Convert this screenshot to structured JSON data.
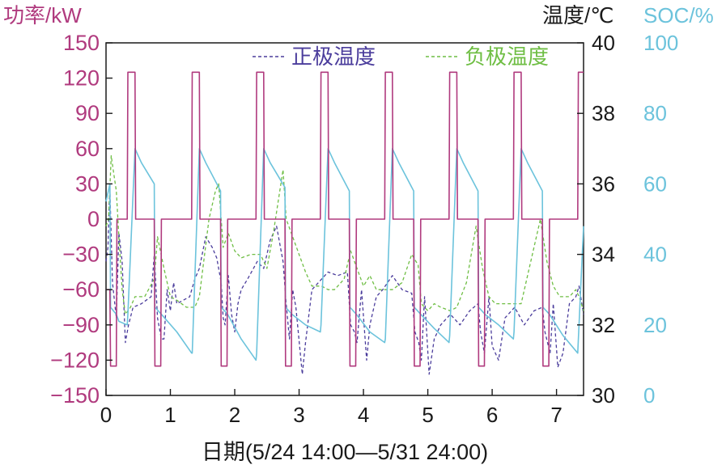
{
  "chart_data": {
    "type": "line",
    "xlabel": "日期(5/24 14:00—5/31 24:00)",
    "xlim": [
      0,
      7.42
    ],
    "x_ticks": [
      "0",
      "1",
      "2",
      "3",
      "4",
      "5",
      "6",
      "7"
    ],
    "axes": {
      "power": {
        "label": "功率/kW",
        "lim": [
          -150,
          150
        ],
        "ticks": [
          "150",
          "120",
          "90",
          "60",
          "30",
          "0",
          "−30",
          "−60",
          "−90",
          "−120",
          "−150"
        ],
        "color": "#b03a7e"
      },
      "temperature": {
        "label": "温度/℃",
        "lim": [
          30,
          40
        ],
        "ticks": [
          "40",
          "38",
          "36",
          "34",
          "32",
          "30"
        ],
        "color": "#1a1a1a"
      },
      "soc": {
        "label": "SOC/%",
        "lim": [
          0,
          100
        ],
        "ticks": [
          "100",
          "80",
          "60",
          "40",
          "20",
          "0"
        ],
        "color": "#6cc3dc"
      }
    },
    "legend": {
      "position": "top",
      "entries": [
        {
          "label": "正极温度",
          "color": "#4b3d9c",
          "style": "dashed"
        },
        {
          "label": "负极温度",
          "color": "#6fbe44",
          "style": "dashed"
        }
      ]
    },
    "series": [
      {
        "name": "功率",
        "axis": "power",
        "color": "#b03a7e",
        "style": "solid",
        "step": true,
        "points": [
          [
            0,
            -60
          ],
          [
            0.06,
            -60
          ],
          [
            0.07,
            -125
          ],
          [
            0.16,
            -125
          ],
          [
            0.17,
            0
          ],
          [
            0.33,
            0
          ],
          [
            0.34,
            125
          ],
          [
            0.45,
            125
          ],
          [
            0.46,
            0
          ],
          [
            0.75,
            0
          ],
          [
            0.76,
            -125
          ],
          [
            0.85,
            -125
          ],
          [
            0.86,
            0
          ],
          [
            1.33,
            0
          ],
          [
            1.34,
            125
          ],
          [
            1.45,
            125
          ],
          [
            1.46,
            0
          ],
          [
            1.78,
            0
          ],
          [
            1.79,
            -125
          ],
          [
            1.88,
            -125
          ],
          [
            1.89,
            0
          ],
          [
            2.33,
            0
          ],
          [
            2.34,
            125
          ],
          [
            2.45,
            125
          ],
          [
            2.46,
            0
          ],
          [
            2.78,
            0
          ],
          [
            2.79,
            -125
          ],
          [
            2.88,
            -125
          ],
          [
            2.89,
            0
          ],
          [
            3.33,
            0
          ],
          [
            3.34,
            125
          ],
          [
            3.45,
            125
          ],
          [
            3.46,
            0
          ],
          [
            3.78,
            0
          ],
          [
            3.79,
            -125
          ],
          [
            3.88,
            -125
          ],
          [
            3.89,
            0
          ],
          [
            4.33,
            0
          ],
          [
            4.34,
            125
          ],
          [
            4.45,
            125
          ],
          [
            4.46,
            0
          ],
          [
            4.78,
            0
          ],
          [
            4.79,
            -125
          ],
          [
            4.88,
            -125
          ],
          [
            4.89,
            0
          ],
          [
            5.33,
            0
          ],
          [
            5.34,
            125
          ],
          [
            5.45,
            125
          ],
          [
            5.46,
            0
          ],
          [
            5.78,
            0
          ],
          [
            5.79,
            -125
          ],
          [
            5.88,
            -125
          ],
          [
            5.89,
            0
          ],
          [
            6.33,
            0
          ],
          [
            6.34,
            125
          ],
          [
            6.45,
            125
          ],
          [
            6.46,
            0
          ],
          [
            6.78,
            0
          ],
          [
            6.79,
            -125
          ],
          [
            6.88,
            -125
          ],
          [
            6.89,
            0
          ],
          [
            7.33,
            0
          ],
          [
            7.34,
            125
          ],
          [
            7.42,
            125
          ]
        ]
      },
      {
        "name": "SOC",
        "axis": "soc",
        "color": "#6cc3dc",
        "style": "solid",
        "points": [
          [
            0,
            55
          ],
          [
            0.06,
            60
          ],
          [
            0.07,
            25
          ],
          [
            0.16,
            23
          ],
          [
            0.2,
            21
          ],
          [
            0.33,
            20
          ],
          [
            0.34,
            23
          ],
          [
            0.45,
            70
          ],
          [
            0.55,
            66
          ],
          [
            0.75,
            60
          ],
          [
            0.76,
            25
          ],
          [
            0.86,
            23
          ],
          [
            1.1,
            18
          ],
          [
            1.33,
            12
          ],
          [
            1.34,
            12
          ],
          [
            1.45,
            70
          ],
          [
            1.55,
            66
          ],
          [
            1.78,
            58
          ],
          [
            1.79,
            25
          ],
          [
            1.89,
            23
          ],
          [
            2.1,
            16
          ],
          [
            2.33,
            10
          ],
          [
            2.34,
            12
          ],
          [
            2.45,
            70
          ],
          [
            2.55,
            66
          ],
          [
            2.78,
            59
          ],
          [
            2.79,
            25
          ],
          [
            2.89,
            23
          ],
          [
            3.1,
            20
          ],
          [
            3.33,
            18
          ],
          [
            3.34,
            20
          ],
          [
            3.45,
            70
          ],
          [
            3.55,
            66
          ],
          [
            3.78,
            58
          ],
          [
            3.79,
            25
          ],
          [
            3.89,
            23
          ],
          [
            4.1,
            18
          ],
          [
            4.33,
            15
          ],
          [
            4.34,
            16
          ],
          [
            4.45,
            70
          ],
          [
            4.55,
            66
          ],
          [
            4.78,
            58
          ],
          [
            4.79,
            25
          ],
          [
            4.89,
            23
          ],
          [
            5.1,
            19
          ],
          [
            5.33,
            15
          ],
          [
            5.34,
            17
          ],
          [
            5.45,
            70
          ],
          [
            5.55,
            66
          ],
          [
            5.78,
            58
          ],
          [
            5.79,
            25
          ],
          [
            5.89,
            23
          ],
          [
            6.1,
            20
          ],
          [
            6.33,
            16
          ],
          [
            6.34,
            18
          ],
          [
            6.45,
            70
          ],
          [
            6.55,
            66
          ],
          [
            6.78,
            58
          ],
          [
            6.79,
            25
          ],
          [
            6.89,
            23
          ],
          [
            7.1,
            17
          ],
          [
            7.33,
            12
          ],
          [
            7.34,
            16
          ],
          [
            7.42,
            48
          ]
        ]
      },
      {
        "name": "正极温度",
        "axis": "temperature",
        "color": "#4b3d9c",
        "style": "dashed",
        "points": [
          [
            0,
            33.8
          ],
          [
            0.03,
            34.2
          ],
          [
            0.05,
            35.5
          ],
          [
            0.06,
            35.8
          ],
          [
            0.1,
            33.2
          ],
          [
            0.16,
            32.2
          ],
          [
            0.2,
            34.6
          ],
          [
            0.25,
            33.8
          ],
          [
            0.3,
            31.5
          ],
          [
            0.35,
            32
          ],
          [
            0.42,
            32.5
          ],
          [
            0.55,
            32.6
          ],
          [
            0.7,
            32.8
          ],
          [
            0.75,
            34
          ],
          [
            0.8,
            32.2
          ],
          [
            0.86,
            31.6
          ],
          [
            0.9,
            31.6
          ],
          [
            0.95,
            33
          ],
          [
            1,
            32.4
          ],
          [
            1.05,
            33.2
          ],
          [
            1.1,
            32.6
          ],
          [
            1.3,
            32.8
          ],
          [
            1.38,
            33.3
          ],
          [
            1.45,
            33.6
          ],
          [
            1.55,
            34.5
          ],
          [
            1.65,
            34.2
          ],
          [
            1.72,
            33.9
          ],
          [
            1.79,
            33.2
          ],
          [
            1.82,
            32.2
          ],
          [
            1.85,
            32
          ],
          [
            1.9,
            33.4
          ],
          [
            1.95,
            32.3
          ],
          [
            2,
            31.8
          ],
          [
            2.05,
            32.6
          ],
          [
            2.1,
            33
          ],
          [
            2.2,
            33.3
          ],
          [
            2.35,
            33.8
          ],
          [
            2.45,
            33.6
          ],
          [
            2.55,
            34.4
          ],
          [
            2.65,
            34.8
          ],
          [
            2.75,
            33.8
          ],
          [
            2.8,
            32.6
          ],
          [
            2.85,
            31.6
          ],
          [
            2.9,
            33
          ],
          [
            2.95,
            32.5
          ],
          [
            3.05,
            30.6
          ],
          [
            3.1,
            31.5
          ],
          [
            3.2,
            33
          ],
          [
            3.3,
            33.2
          ],
          [
            3.45,
            33.5
          ],
          [
            3.6,
            33.4
          ],
          [
            3.75,
            33.5
          ],
          [
            3.8,
            32
          ],
          [
            3.86,
            31.8
          ],
          [
            3.9,
            31.5
          ],
          [
            3.97,
            33
          ],
          [
            4.05,
            31
          ],
          [
            4.1,
            32
          ],
          [
            4.2,
            32.8
          ],
          [
            4.3,
            33
          ],
          [
            4.45,
            33.4
          ],
          [
            4.6,
            33
          ],
          [
            4.75,
            32.9
          ],
          [
            4.8,
            31.8
          ],
          [
            4.86,
            31.5
          ],
          [
            4.9,
            31
          ],
          [
            4.95,
            32.8
          ],
          [
            5.02,
            30.6
          ],
          [
            5.1,
            31.6
          ],
          [
            5.2,
            32
          ],
          [
            5.35,
            32.3
          ],
          [
            5.5,
            32
          ],
          [
            5.65,
            32.4
          ],
          [
            5.78,
            32.6
          ],
          [
            5.82,
            31.8
          ],
          [
            5.88,
            31.2
          ],
          [
            5.95,
            32.8
          ],
          [
            6,
            31.4
          ],
          [
            6.1,
            31
          ],
          [
            6.2,
            32.2
          ],
          [
            6.35,
            32.5
          ],
          [
            6.5,
            32
          ],
          [
            6.65,
            32.4
          ],
          [
            6.78,
            32.5
          ],
          [
            6.82,
            31.8
          ],
          [
            6.9,
            31.2
          ],
          [
            6.95,
            32.6
          ],
          [
            7.02,
            30.8
          ],
          [
            7.1,
            31.2
          ],
          [
            7.2,
            32.6
          ],
          [
            7.3,
            32.8
          ],
          [
            7.35,
            33.1
          ],
          [
            7.42,
            32.3
          ]
        ]
      },
      {
        "name": "负极温度",
        "axis": "temperature",
        "color": "#6fbe44",
        "style": "dashed",
        "points": [
          [
            0,
            34.8
          ],
          [
            0.04,
            35
          ],
          [
            0.08,
            36.8
          ],
          [
            0.12,
            36.3
          ],
          [
            0.16,
            35.8
          ],
          [
            0.2,
            34.5
          ],
          [
            0.25,
            33
          ],
          [
            0.3,
            32.3
          ],
          [
            0.38,
            32.5
          ],
          [
            0.45,
            32.8
          ],
          [
            0.6,
            32.8
          ],
          [
            0.75,
            33.3
          ],
          [
            0.8,
            34.5
          ],
          [
            0.9,
            33.6
          ],
          [
            1,
            32.8
          ],
          [
            1.1,
            32.7
          ],
          [
            1.25,
            32.5
          ],
          [
            1.38,
            32.5
          ],
          [
            1.45,
            32.8
          ],
          [
            1.6,
            35
          ],
          [
            1.7,
            35.8
          ],
          [
            1.75,
            36
          ],
          [
            1.82,
            34.2
          ],
          [
            1.9,
            34.6
          ],
          [
            2,
            34.1
          ],
          [
            2.1,
            33.9
          ],
          [
            2.25,
            34
          ],
          [
            2.4,
            34
          ],
          [
            2.5,
            33.6
          ],
          [
            2.6,
            34.6
          ],
          [
            2.75,
            36.4
          ],
          [
            2.8,
            35
          ],
          [
            2.9,
            34.5
          ],
          [
            3,
            34
          ],
          [
            3.1,
            33.5
          ],
          [
            3.2,
            33.1
          ],
          [
            3.35,
            33.1
          ],
          [
            3.45,
            33
          ],
          [
            3.55,
            33
          ],
          [
            3.7,
            33.3
          ],
          [
            3.8,
            34.1
          ],
          [
            3.9,
            33.6
          ],
          [
            4,
            33.1
          ],
          [
            4.1,
            33.4
          ],
          [
            4.2,
            33
          ],
          [
            4.35,
            33
          ],
          [
            4.45,
            33
          ],
          [
            4.6,
            33.2
          ],
          [
            4.75,
            34
          ],
          [
            4.85,
            33.7
          ],
          [
            4.9,
            32.6
          ],
          [
            5,
            32.4
          ],
          [
            5.1,
            32.6
          ],
          [
            5.2,
            32.5
          ],
          [
            5.35,
            32.4
          ],
          [
            5.45,
            32.5
          ],
          [
            5.6,
            33.2
          ],
          [
            5.75,
            34.8
          ],
          [
            5.85,
            33.6
          ],
          [
            5.95,
            32.8
          ],
          [
            6.05,
            32.6
          ],
          [
            6.2,
            32.6
          ],
          [
            6.35,
            32.6
          ],
          [
            6.45,
            32.6
          ],
          [
            6.6,
            33.8
          ],
          [
            6.75,
            35
          ],
          [
            6.85,
            33.8
          ],
          [
            6.95,
            33.1
          ],
          [
            7.05,
            32.8
          ],
          [
            7.2,
            32.8
          ],
          [
            7.3,
            33
          ],
          [
            7.35,
            32.8
          ],
          [
            7.42,
            32.4
          ]
        ]
      }
    ]
  }
}
